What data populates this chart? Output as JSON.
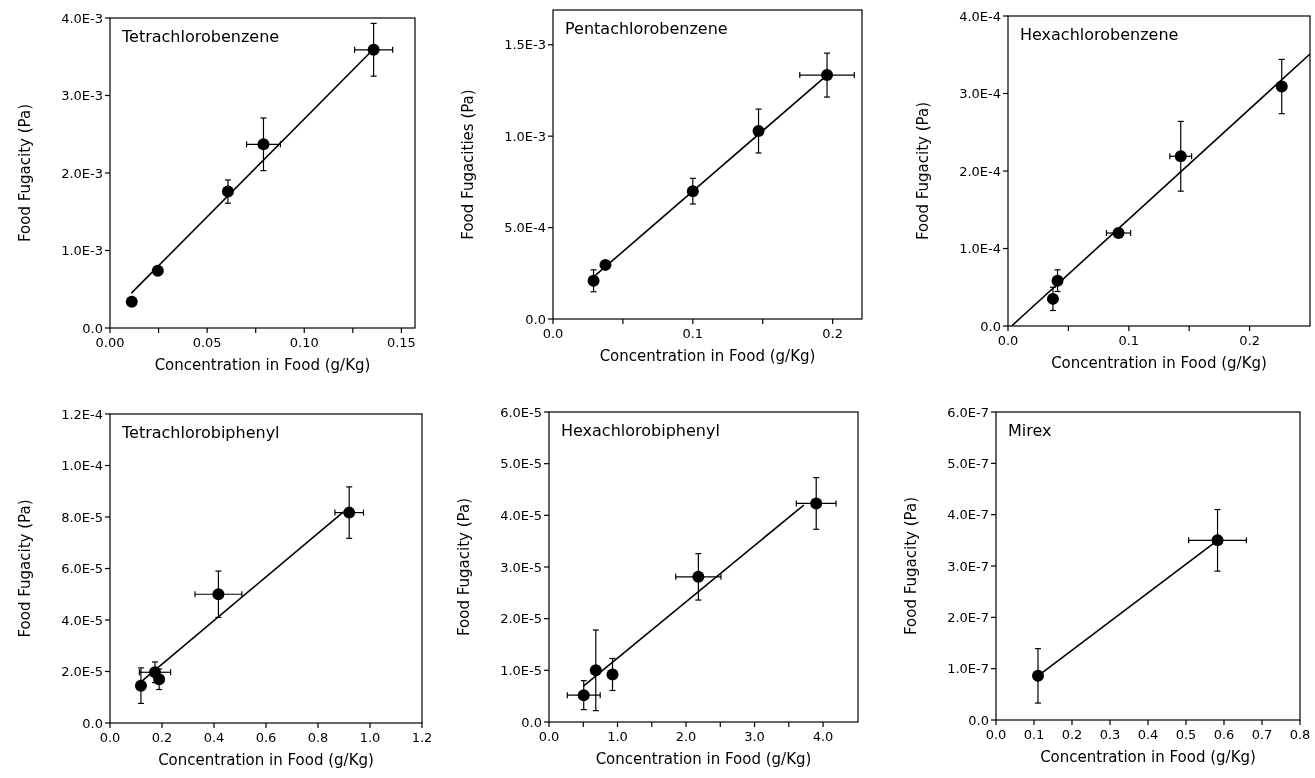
{
  "chart_data": [
    {
      "type": "scatter",
      "title": "Tetrachlorobenzene",
      "xlabel": "Concentration in Food (g/Kg)",
      "ylabel": "Food Fugacity (Pa)",
      "marker": "circle",
      "xlim": [
        0,
        0.157
      ],
      "ylim": [
        0,
        0.004
      ],
      "xticks": [
        {
          "value": 0,
          "label": "0.00"
        },
        {
          "value": 0.025,
          "label": null
        },
        {
          "value": 0.05,
          "label": "0.05"
        },
        {
          "value": 0.075,
          "label": null
        },
        {
          "value": 0.1,
          "label": "0.10"
        },
        {
          "value": 0.125,
          "label": null
        },
        {
          "value": 0.15,
          "label": "0.15"
        }
      ],
      "yticks": [
        {
          "value": 0,
          "label": "0.0"
        },
        {
          "value": 0.001,
          "label": "1.0E-3"
        },
        {
          "value": 0.002,
          "label": "2.0E-3"
        },
        {
          "value": 0.003,
          "label": "3.0E-3"
        },
        {
          "value": 0.004,
          "label": "4.0E-3"
        }
      ],
      "series": [
        {
          "type": "line",
          "marker": "none",
          "color": "#000000",
          "x": [
            0.011,
            0.1357
          ],
          "values": [
            0.00045,
            0.0036
          ]
        },
        {
          "color": "#000000",
          "x": [
            0.0112,
            0.0246,
            0.0607,
            0.079,
            0.1357
          ],
          "values": [
            0.00034,
            0.00074,
            0.00176,
            0.00237,
            0.00359
          ],
          "errors": [
            null,
            null,
            0.00015,
            0.00034,
            0.00034
          ],
          "xerrors": [
            null,
            null,
            null,
            0.0087,
            0.0098
          ]
        }
      ]
    },
    {
      "type": "scatter",
      "title": "Pentachlorobenzene",
      "xlabel": "Concentration in Food (g/Kg)",
      "ylabel": "Food Fugacities (Pa)",
      "marker": "circle",
      "xlim": [
        0,
        0.221
      ],
      "ylim": [
        0,
        0.00169
      ],
      "xticks": [
        {
          "value": 0,
          "label": "0.0"
        },
        {
          "value": 0.05,
          "label": null
        },
        {
          "value": 0.1,
          "label": "0.1"
        },
        {
          "value": 0.15,
          "label": null
        },
        {
          "value": 0.2,
          "label": "0.2"
        }
      ],
      "yticks": [
        {
          "value": 0,
          "label": "0.0"
        },
        {
          "value": 0.0005,
          "label": "5.0E-4"
        },
        {
          "value": 0.001,
          "label": "1.0E-3"
        },
        {
          "value": 0.0015,
          "label": "1.5E-3"
        }
      ],
      "series": [
        {
          "type": "line",
          "marker": "none",
          "color": "#000000",
          "x": [
            0.029,
            0.196
          ],
          "values": [
            0.00023,
            0.001334
          ]
        },
        {
          "color": "#000000",
          "x": [
            0.029,
            0.0375,
            0.1,
            0.147,
            0.196
          ],
          "values": [
            0.000209,
            0.000296,
            0.000699,
            0.001028,
            0.001334
          ],
          "errors": [
            6e-05,
            null,
            7e-05,
            0.00012,
            0.00012
          ],
          "xerrors": [
            null,
            null,
            null,
            null,
            0.0195
          ]
        }
      ]
    },
    {
      "type": "scatter",
      "title": "Hexachlorobenzene",
      "xlabel": "Concentration in Food (g/Kg)",
      "ylabel": "Food Fugacity (Pa)",
      "marker": "circle",
      "xlim": [
        0,
        0.25
      ],
      "ylim": [
        0,
        0.0004
      ],
      "xticks": [
        {
          "value": 0,
          "label": "0.0"
        },
        {
          "value": 0.05,
          "label": null
        },
        {
          "value": 0.1,
          "label": "0.1"
        },
        {
          "value": 0.15,
          "label": null
        },
        {
          "value": 0.2,
          "label": "0.2"
        }
      ],
      "yticks": [
        {
          "value": 0,
          "label": "0.0"
        },
        {
          "value": 0.0001,
          "label": "1.0E-4"
        },
        {
          "value": 0.0002,
          "label": "2.0E-4"
        },
        {
          "value": 0.0003,
          "label": "3.0E-4"
        },
        {
          "value": 0.0004,
          "label": "4.0E-4"
        }
      ],
      "series": [
        {
          "type": "line",
          "marker": "none",
          "color": "#000000",
          "x": [
            0.003,
            0.25
          ],
          "values": [
            0,
            0.000351
          ]
        },
        {
          "color": "#000000",
          "x": [
            0.0372,
            0.041,
            0.0915,
            0.143,
            0.2266
          ],
          "values": [
            3.5e-05,
            5.85e-05,
            0.00012,
            0.000219,
            0.000309
          ],
          "errors": [
            1.5e-05,
            1.4e-05,
            null,
            4.5e-05,
            3.5e-05
          ],
          "xerrors": [
            null,
            null,
            0.01,
            0.009,
            null
          ]
        }
      ]
    },
    {
      "type": "scatter",
      "title": "Tetrachlorobiphenyl",
      "xlabel": "Concentration in Food (g/Kg)",
      "ylabel": "Food Fugacity (Pa)",
      "marker": "circle",
      "xlim": [
        0,
        1.2
      ],
      "ylim": [
        0,
        0.00012
      ],
      "xticks": [
        {
          "value": 0,
          "label": "0.0"
        },
        {
          "value": 0.2,
          "label": "0.2"
        },
        {
          "value": 0.4,
          "label": "0.4"
        },
        {
          "value": 0.6,
          "label": "0.6"
        },
        {
          "value": 0.8,
          "label": "0.8"
        },
        {
          "value": 1.0,
          "label": "1.0"
        },
        {
          "value": 1.2,
          "label": "1.2"
        }
      ],
      "yticks": [
        {
          "value": 0,
          "label": "0.0"
        },
        {
          "value": 2e-05,
          "label": "2.0E-5"
        },
        {
          "value": 4e-05,
          "label": "4.0E-5"
        },
        {
          "value": 6e-05,
          "label": "6.0E-5"
        },
        {
          "value": 8e-05,
          "label": "8.0E-5"
        },
        {
          "value": 0.0001,
          "label": "1.0E-4"
        },
        {
          "value": 0.00012,
          "label": "1.2E-4"
        }
      ],
      "series": [
        {
          "type": "line",
          "marker": "none",
          "color": "#000000",
          "x": [
            0.119,
            0.898
          ],
          "values": [
            1.6e-05,
            8.2e-05
          ]
        },
        {
          "color": "#000000",
          "x": [
            0.119,
            0.173,
            0.189,
            0.417,
            0.92
          ],
          "values": [
            1.45e-05,
            1.97e-05,
            1.7e-05,
            5e-05,
            8.17e-05
          ],
          "errors": [
            6.9e-06,
            4e-06,
            4e-06,
            9e-06,
            1e-05
          ],
          "xerrors": [
            null,
            0.06,
            null,
            0.09,
            0.055
          ]
        }
      ]
    },
    {
      "type": "scatter",
      "title": "Hexachlorobiphenyl",
      "xlabel": "Concentration in Food (g/Kg)",
      "ylabel": "Food Fugacity (Pa)",
      "marker": "circle",
      "xlim": [
        0,
        4.51
      ],
      "ylim": [
        0,
        6e-05
      ],
      "xticks": [
        {
          "value": 0,
          "label": "0.0"
        },
        {
          "value": 0.5,
          "label": null
        },
        {
          "value": 1,
          "label": "1.0"
        },
        {
          "value": 1.5,
          "label": null
        },
        {
          "value": 2,
          "label": "2.0"
        },
        {
          "value": 2.5,
          "label": null
        },
        {
          "value": 3,
          "label": "3.0"
        },
        {
          "value": 3.5,
          "label": null
        },
        {
          "value": 4,
          "label": "4.0"
        }
      ],
      "yticks": [
        {
          "value": 0,
          "label": "0.0"
        },
        {
          "value": 1e-05,
          "label": "1.0E-5"
        },
        {
          "value": 2e-05,
          "label": "2.0E-5"
        },
        {
          "value": 3e-05,
          "label": "3.0E-5"
        },
        {
          "value": 4e-05,
          "label": "4.0E-5"
        },
        {
          "value": 5e-05,
          "label": "5.0E-5"
        },
        {
          "value": 6e-05,
          "label": "6.0E-5"
        }
      ],
      "series": [
        {
          "type": "line",
          "marker": "none",
          "color": "#000000",
          "x": [
            0.507,
            3.72
          ],
          "values": [
            7e-06,
            4.2e-05
          ]
        },
        {
          "color": "#000000",
          "x": [
            0.507,
            0.683,
            0.927,
            2.18,
            3.9
          ],
          "values": [
            5.2e-06,
            1e-05,
            9.2e-06,
            2.81e-05,
            4.23e-05
          ],
          "errors": [
            2.8e-06,
            7.8e-06,
            3.1e-06,
            4.5e-06,
            5e-06
          ],
          "xerrors": [
            0.24,
            null,
            null,
            0.33,
            0.29
          ]
        }
      ]
    },
    {
      "type": "scatter",
      "title": "Mirex",
      "xlabel": "Concentration in Food (g/Kg)",
      "ylabel": "Food Fugacity (Pa)",
      "marker": "circle",
      "xlim": [
        0,
        0.8
      ],
      "ylim": [
        0,
        6e-07
      ],
      "xticks": [
        {
          "value": 0,
          "label": "0.0"
        },
        {
          "value": 0.1,
          "label": "0.1"
        },
        {
          "value": 0.2,
          "label": "0.2"
        },
        {
          "value": 0.3,
          "label": "0.3"
        },
        {
          "value": 0.4,
          "label": "0.4"
        },
        {
          "value": 0.5,
          "label": "0.5"
        },
        {
          "value": 0.6,
          "label": "0.6"
        },
        {
          "value": 0.7,
          "label": "0.7"
        },
        {
          "value": 0.8,
          "label": "0.8"
        }
      ],
      "yticks": [
        {
          "value": 0,
          "label": "0.0"
        },
        {
          "value": 1e-07,
          "label": "1.0E-7"
        },
        {
          "value": 2e-07,
          "label": "2.0E-7"
        },
        {
          "value": 3e-07,
          "label": "3.0E-7"
        },
        {
          "value": 4e-07,
          "label": "4.0E-7"
        },
        {
          "value": 5e-07,
          "label": "5.0E-7"
        },
        {
          "value": 6e-07,
          "label": "6.0E-7"
        }
      ],
      "series": [
        {
          "type": "line",
          "marker": "none",
          "color": "#000000",
          "x": [
            0.1105,
            0.583
          ],
          "values": [
            8.6e-08,
            3.5e-07
          ]
        },
        {
          "color": "#000000",
          "x": [
            0.1105,
            0.583
          ],
          "values": [
            8.6e-08,
            3.5e-07
          ],
          "errors": [
            5.3e-08,
            6e-08
          ],
          "xerrors": [
            null,
            0.076
          ]
        }
      ]
    }
  ]
}
